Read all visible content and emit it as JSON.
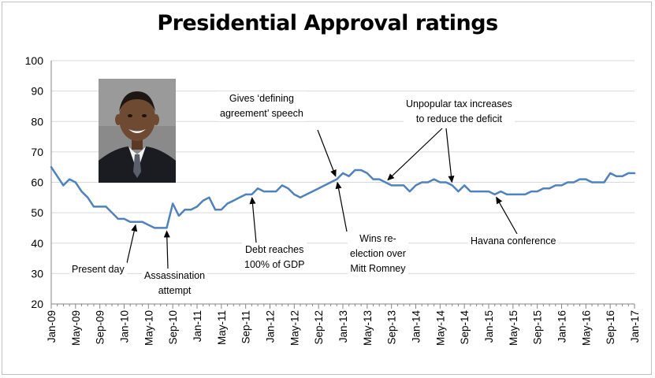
{
  "chart_data": {
    "type": "line",
    "title": "Presidential Approval ratings",
    "xlabel": "",
    "ylabel": "",
    "ylim": [
      20,
      100
    ],
    "yticks": [
      20,
      30,
      40,
      50,
      60,
      70,
      80,
      90,
      100
    ],
    "grid": true,
    "x_start": "Jan-09",
    "x_tick_labels": [
      "Jan-09",
      "May-09",
      "Sep-09",
      "Jan-10",
      "May-10",
      "Sep-10",
      "Jan-11",
      "May-11",
      "Sep-11",
      "Jan-12",
      "May-12",
      "Sep-12",
      "Jan-13",
      "May-13",
      "Sep-13",
      "Jan-14",
      "May-14",
      "Sep-14",
      "Jan-15",
      "May-15",
      "Sep-15",
      "Jan-16",
      "May-16",
      "Sep-16",
      "Jan-17"
    ],
    "series": [
      {
        "color": "#4f81bd",
        "values": [
          65,
          62,
          59,
          61,
          60,
          57,
          55,
          52,
          52,
          52,
          50,
          48,
          48,
          47,
          47,
          47,
          46,
          45,
          45,
          45,
          53,
          49,
          51,
          51,
          52,
          54,
          55,
          51,
          51,
          53,
          54,
          55,
          56,
          56,
          58,
          57,
          57,
          57,
          59,
          58,
          56,
          55,
          56,
          57,
          58,
          59,
          60,
          61,
          63,
          62,
          64,
          64,
          63,
          61,
          61,
          60,
          59,
          59,
          59,
          57,
          59,
          60,
          60,
          61,
          60,
          60,
          59,
          57,
          59,
          57,
          57,
          57,
          57,
          56,
          57,
          56,
          56,
          56,
          56,
          57,
          57,
          58,
          58,
          59,
          59,
          60,
          60,
          61,
          61,
          60,
          60,
          60,
          63,
          62,
          62,
          63,
          63
        ]
      }
    ],
    "annotations": [
      {
        "text": "Present day"
      },
      {
        "text": "Assassination attempt"
      },
      {
        "text": "Debt reaches 100% of GDP"
      },
      {
        "text": "Gives ‘defining agreement’ speech"
      },
      {
        "text": "Wins re-election over Mitt Romney"
      },
      {
        "text": "Unpopular tax increases to reduce the deficit"
      },
      {
        "text": "Havana conference"
      }
    ]
  },
  "annotations": {
    "present_day": "Present day",
    "assassination_1": "Assassination",
    "assassination_2": "attempt",
    "debt_1": "Debt reaches",
    "debt_2": "100% of GDP",
    "speech_1": "Gives ‘defining",
    "speech_2": "agreement’ speech",
    "reelect_1": "Wins re-",
    "reelect_2": "election over",
    "reelect_3": "Mitt Romney",
    "tax_1": "Unpopular tax increases",
    "tax_2": "to reduce the deficit",
    "havana": "Havana conference"
  },
  "colors": {
    "line": "#4f81bd",
    "grid": "#d9d9d9",
    "axis": "#868686"
  }
}
